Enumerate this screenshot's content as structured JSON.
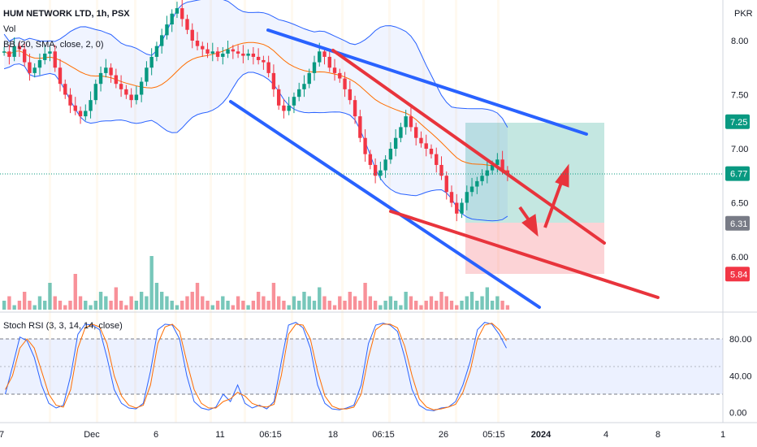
{
  "chart_data": [
    {
      "type": "candlestick",
      "title": "HUM NETWORK LTD, 1h, PSX",
      "currency": "PKR",
      "indicators": [
        "Vol",
        "BB (20, SMA, close, 2, 0)"
      ],
      "ylim": [
        5.5,
        8.35
      ],
      "y_ticks": [
        "8.00",
        "7.50",
        "7.00",
        "6.50",
        "6.00"
      ],
      "x_ticks": [
        "7",
        "Dec",
        "6",
        "11",
        "06:15",
        "18",
        "06:15",
        "26",
        "05:15",
        "2024",
        "4",
        "8",
        "1"
      ],
      "price_labels": [
        {
          "text": "7.25",
          "value": 7.25,
          "color": "#089981"
        },
        {
          "text": "6.77",
          "value": 6.77,
          "color": "#089981"
        },
        {
          "text": "6.31",
          "value": 6.31,
          "color": "#787b86"
        },
        {
          "text": "5.84",
          "value": 5.84,
          "color": "#f23645"
        }
      ],
      "close_path": [
        7.9,
        7.85,
        7.95,
        7.92,
        7.8,
        7.7,
        7.75,
        7.82,
        7.88,
        7.9,
        7.75,
        7.6,
        7.5,
        7.4,
        7.35,
        7.3,
        7.35,
        7.45,
        7.6,
        7.7,
        7.75,
        7.68,
        7.6,
        7.55,
        7.5,
        7.45,
        7.5,
        7.62,
        7.75,
        7.85,
        7.95,
        8.05,
        8.15,
        8.25,
        8.3,
        8.2,
        8.1,
        8.0,
        7.95,
        7.92,
        7.88,
        7.9,
        7.85,
        7.88,
        7.92,
        7.9,
        7.88,
        7.86,
        7.88,
        7.85,
        7.82,
        7.8,
        7.7,
        7.55,
        7.4,
        7.35,
        7.4,
        7.48,
        7.55,
        7.6,
        7.7,
        7.8,
        7.9,
        7.85,
        7.75,
        7.7,
        7.65,
        7.55,
        7.45,
        7.3,
        7.1,
        6.95,
        6.85,
        6.75,
        6.8,
        6.9,
        7.0,
        7.1,
        7.2,
        7.3,
        7.2,
        7.1,
        7.05,
        7.0,
        6.95,
        6.85,
        6.75,
        6.6,
        6.5,
        6.4,
        6.5,
        6.6,
        6.65,
        6.7,
        6.75,
        6.8,
        6.85,
        6.9,
        6.8,
        6.77
      ],
      "volume_path": [
        2,
        3,
        1,
        2,
        4,
        2,
        1,
        3,
        2,
        6,
        3,
        2,
        1,
        2,
        8,
        3,
        2,
        1,
        2,
        4,
        3,
        2,
        5,
        2,
        1,
        3,
        2,
        4,
        3,
        12,
        6,
        4,
        3,
        2,
        1,
        2,
        3,
        4,
        6,
        3,
        2,
        1,
        2,
        3,
        2,
        1,
        3,
        2,
        1,
        2,
        4,
        3,
        2,
        6,
        3,
        2,
        1,
        3,
        2,
        4,
        3,
        2,
        5,
        3,
        2,
        1,
        3,
        2,
        4,
        3,
        2,
        6,
        3,
        2,
        1,
        2,
        3,
        2,
        1,
        4,
        3,
        2,
        1,
        2,
        3,
        2,
        4,
        3,
        2,
        1,
        2,
        3,
        4,
        2,
        3,
        5,
        2,
        3,
        2,
        1
      ],
      "annotations": [
        "descending channel (blue)",
        "falling wedge (red)",
        "long position target / stop zone",
        "arrows"
      ]
    },
    {
      "type": "line",
      "title": "Stoch RSI (3, 3, 14, 14, close)",
      "ylim": [
        -8,
        110
      ],
      "y_ticks": [
        "80.00",
        "40.00",
        "0.00"
      ],
      "levels": [
        80,
        50,
        20
      ],
      "series": [
        {
          "color": "#2962ff",
          "values": [
            20,
            50,
            82,
            78,
            60,
            30,
            10,
            5,
            8,
            40,
            85,
            96,
            95,
            90,
            60,
            25,
            10,
            5,
            4,
            10,
            45,
            90,
            96,
            95,
            80,
            40,
            12,
            5,
            3,
            6,
            20,
            12,
            30,
            10,
            5,
            8,
            4,
            12,
            55,
            95,
            98,
            92,
            70,
            30,
            10,
            4,
            3,
            5,
            8,
            30,
            75,
            95,
            97,
            95,
            88,
            60,
            25,
            8,
            3,
            2,
            5,
            6,
            12,
            30,
            55,
            90,
            98,
            96,
            85,
            70
          ]
        },
        {
          "color": "#ff6d00",
          "values": [
            25,
            40,
            70,
            80,
            70,
            45,
            20,
            8,
            6,
            25,
            70,
            92,
            96,
            93,
            75,
            40,
            18,
            8,
            5,
            8,
            30,
            75,
            93,
            96,
            88,
            55,
            25,
            10,
            5,
            5,
            12,
            15,
            22,
            18,
            10,
            7,
            6,
            9,
            40,
            85,
            96,
            95,
            80,
            45,
            18,
            7,
            4,
            4,
            6,
            20,
            60,
            90,
            96,
            96,
            92,
            72,
            40,
            15,
            6,
            3,
            4,
            6,
            9,
            22,
            45,
            80,
            95,
            97,
            90,
            78
          ]
        }
      ]
    }
  ],
  "colors": {
    "up": "#089981",
    "down": "#f23645",
    "band": "#2962ff",
    "basis": "#ff6d00",
    "channel": "#2962ff",
    "wedge": "#e8343c",
    "target_zone": "#bfe6dd",
    "stop_zone": "#fbd3d6"
  }
}
